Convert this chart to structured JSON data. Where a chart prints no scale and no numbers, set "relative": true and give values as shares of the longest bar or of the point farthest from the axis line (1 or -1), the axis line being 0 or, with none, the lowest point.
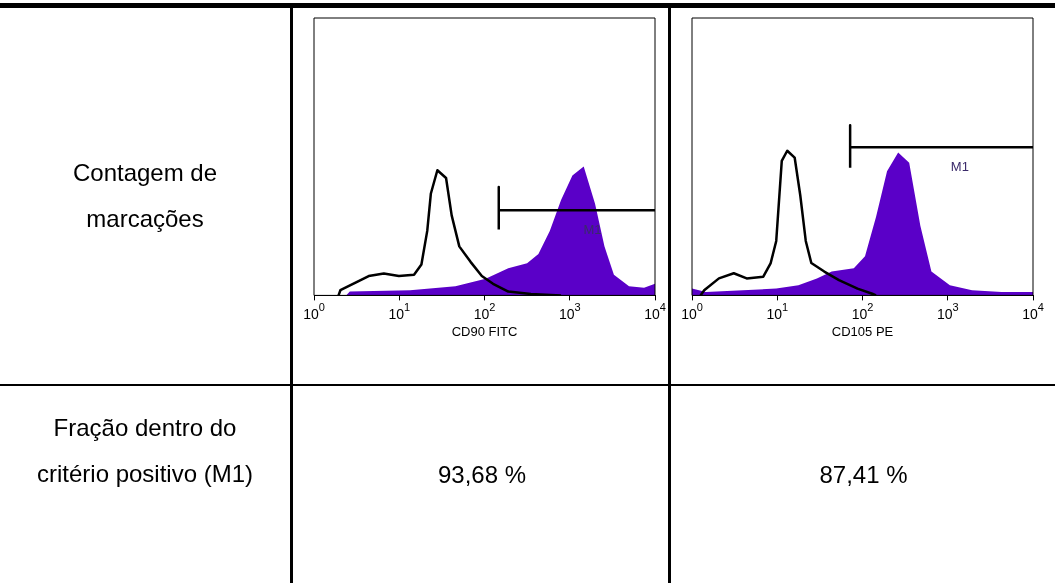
{
  "chart_data": [
    {
      "type": "other",
      "annotations": [
        "Contagem de marcações",
        "Fração dentro do critério positivo (M1)"
      ]
    },
    {
      "type": "area",
      "xlabel": "CD90 FITC",
      "log": "x",
      "relative": true,
      "legend": false,
      "grid": false,
      "tick_labels": "x",
      "xlim": [
        1,
        10000
      ],
      "xticks": [
        {
          "value": 1,
          "label": "10$^{0}$"
        },
        {
          "value": 10,
          "label": "10$^{1}$"
        },
        {
          "value": 100,
          "label": "10$^{2}$"
        },
        {
          "value": 1000,
          "label": "10$^{3}$"
        },
        {
          "value": 10000,
          "label": "10$^{4}$"
        }
      ],
      "series": [
        {
          "type": "area",
          "color": "#5a00c8",
          "x": [
            2.38,
            2.63,
            13.4,
            45.6,
            103,
            190,
            316,
            429,
            583,
            791,
            1074,
            1458,
            1980,
            2552,
            3296,
            4955,
            7442,
            10000
          ],
          "values": [
            0,
            0.03,
            0.04,
            0.07,
            0.13,
            0.21,
            0.25,
            0.32,
            0.5,
            0.74,
            0.93,
            1,
            0.71,
            0.38,
            0.16,
            0.07,
            0.06,
            0.09
          ]
        },
        {
          "type": "line",
          "color": "#000000",
          "x": [
            1.94,
            2.04,
            4.38,
            6.59,
            9.9,
            14.9,
            18.2,
            21.3,
            23.5,
            28,
            35.4,
            41.2,
            50.6,
            68.6,
            93,
            126,
            190,
            350,
            791
          ],
          "values": [
            0,
            0.04,
            0.15,
            0.17,
            0.15,
            0.16,
            0.24,
            0.5,
            0.79,
            0.97,
            0.91,
            0.62,
            0.38,
            0.26,
            0.15,
            0.09,
            0.03,
            0.01,
            0
          ]
        },
        {
          "type": "line",
          "name": "M1",
          "color": "#000000",
          "x": [
            147,
            147,
            147,
            10000
          ],
          "values": [
            0.51,
            0.84,
            0.66,
            0.66
          ]
        }
      ],
      "annotations": [
        "93,68 %"
      ]
    },
    {
      "type": "area",
      "xlabel": "CD105 PE",
      "log": "x",
      "relative": true,
      "legend": false,
      "grid": false,
      "tick_labels": "x",
      "xlim": [
        1,
        10000
      ],
      "xticks": [
        {
          "value": 1,
          "label": "10$^{0}$"
        },
        {
          "value": 10,
          "label": "10$^{1}$"
        },
        {
          "value": 100,
          "label": "10$^{2}$"
        },
        {
          "value": 1000,
          "label": "10$^{3}$"
        },
        {
          "value": 10000,
          "label": "10$^{4}$"
        }
      ],
      "series": [
        {
          "type": "area",
          "color": "#5a00c8",
          "x": [
            1,
            1.46,
            9.73,
            17.7,
            29.2,
            43.5,
            79.1,
            107,
            144,
            194,
            262,
            353,
            477,
            643,
            1059,
            1928,
            4285,
            10000
          ],
          "values": [
            0.04,
            0.02,
            0.04,
            0.06,
            0.1,
            0.14,
            0.16,
            0.23,
            0.46,
            0.73,
            0.84,
            0.78,
            0.41,
            0.14,
            0.06,
            0.03,
            0.02,
            0.02
          ]
        },
        {
          "type": "line",
          "color": "#000000",
          "x": [
            1.26,
            1.39,
            2.07,
            3.09,
            4.38,
            6.86,
            8.38,
            9.73,
            11.3,
            13.1,
            16,
            18.6,
            21.6,
            25.1,
            35.6,
            53,
            87.4,
            130,
            144
          ],
          "values": [
            0,
            0.03,
            0.1,
            0.13,
            0.1,
            0.11,
            0.19,
            0.32,
            0.79,
            0.85,
            0.81,
            0.59,
            0.32,
            0.19,
            0.14,
            0.09,
            0.04,
            0.01,
            0
          ]
        },
        {
          "type": "line",
          "name": "M1",
          "color": "#000000",
          "x": [
            71.6,
            71.6,
            71.6,
            10000
          ],
          "values": [
            0.75,
            1,
            0.87,
            0.87
          ]
        }
      ],
      "annotations": [
        "87,41 %"
      ]
    }
  ]
}
